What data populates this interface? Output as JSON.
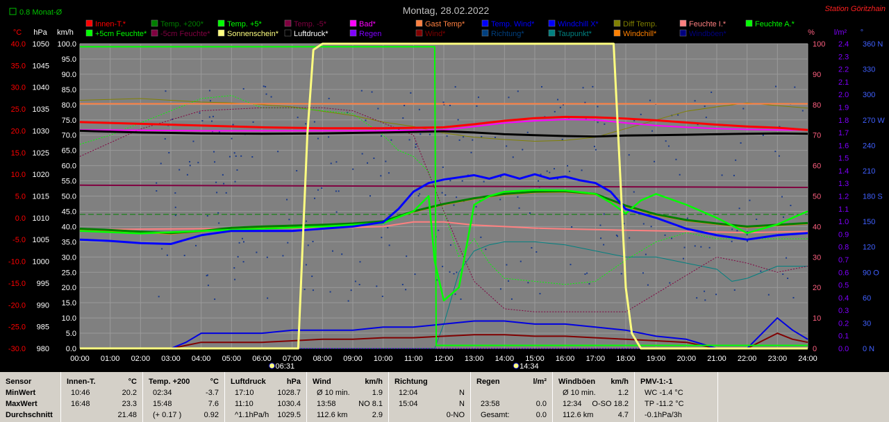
{
  "title": "Montag, 28.02.2022",
  "station": "Station Göritzhain",
  "monthly_avg_label": "0.8 Monat-Ø",
  "axis_units": {
    "c": "°C",
    "hpa": "hPa",
    "kmh": "km/h",
    "pct": "%",
    "lm2": "l/m²",
    "deg": "°"
  },
  "colors": {
    "background": "#000000",
    "plot_bg": "#808080",
    "grid": "#909090"
  },
  "legend": [
    {
      "label": "Innen-T.*",
      "color": "#ff0000"
    },
    {
      "label": "Temp. +200*",
      "color": "#007f00"
    },
    {
      "label": "Temp. +5*",
      "color": "#00ff00"
    },
    {
      "label": "Temp. -5*",
      "color": "#800040"
    },
    {
      "label": "Bad*",
      "color": "#ff00ff"
    },
    {
      "label": "Gast Temp*",
      "color": "#ff8040"
    },
    {
      "label": "Temp. Wind*",
      "color": "#0000ff"
    },
    {
      "label": "Windchill X*",
      "color": "#0000ff"
    },
    {
      "label": "Diff Temp.",
      "color": "#808000"
    },
    {
      "label": "Feuchte I.*",
      "color": "#ff8080"
    },
    {
      "label": "Feuchte A.*",
      "color": "#00ff00"
    },
    {
      "label": "+5cm Feuchte*",
      "color": "#00ff00"
    },
    {
      "label": "-5cm Feuchte*",
      "color": "#800040"
    },
    {
      "label": "Sonnenschein*",
      "color": "#ffff80"
    },
    {
      "label": "Luftdruck*",
      "color": "#000000"
    },
    {
      "label": "Regen",
      "color": "#8000ff"
    },
    {
      "label": "Wind*",
      "color": "#800000"
    },
    {
      "label": "Richtung*",
      "color": "#004080"
    },
    {
      "label": "Taupunkt*",
      "color": "#008080"
    },
    {
      "label": "Windchill*",
      "color": "#ff8000"
    },
    {
      "label": "Windböen*",
      "color": "#000080"
    }
  ],
  "chart_data": {
    "type": "line",
    "title": "Montag, 28.02.2022",
    "x_ticks": [
      "00:00",
      "01:00",
      "02:00",
      "03:00",
      "04:00",
      "05:00",
      "06:00",
      "07:00",
      "08:00",
      "09:00",
      "10:00",
      "11:00",
      "12:00",
      "13:00",
      "14:00",
      "15:00",
      "16:00",
      "17:00",
      "18:00",
      "19:00",
      "20:00",
      "21:00",
      "22:00",
      "23:00",
      "24:00"
    ],
    "xlim": [
      0,
      24
    ],
    "axes": {
      "temp_c": {
        "ticks": [
          "40.0",
          "35.0",
          "30.0",
          "25.0",
          "20.0",
          "15.0",
          "10.0",
          "5.0",
          "0.0",
          "-5.0",
          "-10.0",
          "-15.0",
          "-20.0",
          "-25.0",
          "-30.0"
        ],
        "lim": [
          -30,
          40
        ],
        "color": "#ff0000"
      },
      "pressure_hpa": {
        "ticks": [
          "1050",
          "1045",
          "1040",
          "1035",
          "1030",
          "1025",
          "1020",
          "1015",
          "1010",
          "1005",
          "1000",
          "995",
          "990",
          "985",
          "980"
        ],
        "lim": [
          980,
          1050
        ],
        "color": "#ffffff"
      },
      "speed_kmh": {
        "ticks": [
          "100.0",
          "95.0",
          "90.0",
          "85.0",
          "80.0",
          "75.0",
          "70.0",
          "65.0",
          "60.0",
          "55.0",
          "50.0",
          "45.0",
          "40.0",
          "35.0",
          "30.0",
          "25.0",
          "20.0",
          "15.0",
          "10.0",
          "5.0",
          "0.0"
        ],
        "lim": [
          0,
          100
        ],
        "color": "#ffffff"
      },
      "humidity_pct": {
        "ticks": [
          "100",
          "90",
          "80",
          "70",
          "60",
          "50",
          "40",
          "30",
          "20",
          "10",
          "0"
        ],
        "lim": [
          0,
          100
        ],
        "color": "#ff8080"
      },
      "rain_lm2": {
        "ticks": [
          "2.4",
          "2.3",
          "2.2",
          "2.1",
          "2.0",
          "1.9",
          "1.8",
          "1.7",
          "1.6",
          "1.5",
          "1.4",
          "1.3",
          "1.2",
          "1.1",
          "1.0",
          "0.9",
          "0.8",
          "0.7",
          "0.6",
          "0.5",
          "0.4",
          "0.3",
          "0.2",
          "0.1",
          "0.0"
        ],
        "lim": [
          0,
          2.5
        ],
        "color": "#8000ff"
      },
      "direction_deg": {
        "ticks": [
          "360 N",
          "330",
          "300",
          "270 W",
          "240",
          "210",
          "180 S",
          "150",
          "120",
          "90 O",
          "60",
          "30",
          "0 N"
        ],
        "lim": [
          0,
          360
        ],
        "color": "#4060ff"
      }
    },
    "sunrise": "06:31",
    "sunset": "14:34",
    "series": [
      {
        "name": "Innen-T.*",
        "axis": "temp_c",
        "x": [
          0,
          2,
          4,
          6,
          8,
          10,
          12,
          13,
          14,
          15,
          16,
          17,
          18,
          19,
          20,
          21,
          22,
          23,
          24
        ],
        "values": [
          22,
          21.6,
          21.2,
          20.8,
          20.6,
          20.6,
          20.8,
          21.5,
          22.3,
          22.9,
          23.2,
          23.1,
          22.8,
          22.4,
          21.9,
          21.4,
          21,
          20.7,
          20.2
        ]
      },
      {
        "name": "Bad*",
        "axis": "temp_c",
        "x": [
          0,
          2,
          4,
          6,
          8,
          10,
          12,
          13,
          14,
          15,
          16,
          17,
          18,
          19,
          20,
          21,
          22,
          23,
          24
        ],
        "values": [
          20.2,
          20.1,
          20,
          20,
          20,
          20,
          20.2,
          21,
          21.8,
          22.3,
          22.6,
          22.5,
          21.8,
          21.2,
          20.8,
          20.5,
          20.3,
          20.2,
          20.2
        ]
      },
      {
        "name": "Gast Temp*",
        "axis": "temp_c",
        "x": [
          0,
          24
        ],
        "values": [
          26.2,
          26.2
        ]
      },
      {
        "name": "Temp. -5*",
        "axis": "temp_c",
        "x": [
          0,
          24
        ],
        "values": [
          7.5,
          7
        ]
      },
      {
        "name": "Luftdruck*",
        "axis": "pressure_hpa",
        "x": [
          0,
          2,
          4,
          6,
          8,
          10,
          12,
          13,
          14,
          15,
          16,
          17,
          18,
          19,
          20,
          21,
          22,
          23,
          24
        ],
        "values": [
          1030,
          1029.6,
          1029.4,
          1029.3,
          1029.4,
          1029.6,
          1029.9,
          1029.6,
          1029.2,
          1029,
          1028.8,
          1028.7,
          1028.9,
          1029,
          1029.1,
          1029.2,
          1029.3,
          1029.4,
          1029.3
        ]
      },
      {
        "name": "Temp. +200*",
        "axis": "temp_c",
        "x": [
          0,
          1,
          2,
          3,
          4,
          5,
          6,
          7,
          8,
          9,
          10,
          11,
          12,
          13,
          14,
          15,
          16,
          17,
          18,
          19,
          20,
          21,
          22,
          23,
          24
        ],
        "values": [
          -2.5,
          -2.8,
          -3.2,
          -3.5,
          -3,
          -2.3,
          -2,
          -1.8,
          -1.6,
          -1.3,
          -0.8,
          1.5,
          3.2,
          4.5,
          5.5,
          6,
          6.1,
          5.5,
          2.8,
          0.8,
          -0.5,
          -1.3,
          -2,
          -1.6,
          -1.2
        ]
      },
      {
        "name": "Temp. +5*",
        "axis": "temp_c",
        "x": [
          0,
          2,
          4,
          6,
          8,
          10,
          11,
          11.5,
          11.7,
          12,
          12.5,
          13,
          13.5,
          14,
          15,
          16,
          17,
          17.5,
          18,
          18.5,
          19,
          20,
          21,
          22,
          23,
          24
        ],
        "values": [
          -3,
          -3.6,
          -3,
          -2.5,
          -2,
          -1.2,
          1.5,
          5,
          -10,
          -19,
          -16,
          3,
          5,
          6,
          6.4,
          6.3,
          5.5,
          3.5,
          1,
          4,
          5.5,
          3,
          0,
          -3.5,
          -1.5,
          1.5
        ]
      },
      {
        "name": "Temp. Wind*",
        "axis": "temp_c",
        "x": [
          0,
          1,
          2,
          3,
          4,
          5,
          6,
          7,
          8,
          9,
          10,
          10.5,
          11,
          11.5,
          12,
          13,
          13.5,
          14,
          14.5,
          15,
          15.5,
          16,
          16.5,
          17,
          17.5,
          18,
          19,
          20,
          21,
          22,
          23,
          24
        ],
        "values": [
          -5,
          -5.3,
          -5.8,
          -6,
          -4,
          -3,
          -3,
          -3,
          -2.5,
          -2,
          -1,
          2,
          6,
          8,
          8.8,
          9.8,
          9,
          10,
          9,
          10,
          9,
          9.5,
          8.6,
          8,
          6,
          2,
          0,
          -2.5,
          -4,
          -5,
          -4,
          -3.5
        ]
      },
      {
        "name": "Sonnenschein*",
        "axis": "speed_kmh",
        "x": [
          0,
          7.2,
          7.5,
          7.7,
          8,
          9,
          10,
          11,
          12,
          13,
          14,
          15,
          16,
          17,
          17.6,
          17.8,
          18,
          18.2,
          18.5,
          24
        ],
        "values": [
          0,
          0,
          70,
          98,
          100,
          100,
          100,
          100,
          100,
          100,
          100,
          100,
          100,
          100,
          100,
          60,
          20,
          5,
          0,
          0
        ]
      },
      {
        "name": "Feuchte A.*",
        "axis": "humidity_pct",
        "x": [
          0,
          11.7,
          11.75,
          24
        ],
        "values": [
          99,
          99,
          1,
          1
        ]
      },
      {
        "name": "Feuchte I.*",
        "axis": "humidity_pct",
        "x": [
          0,
          4,
          8,
          10,
          11,
          12,
          13,
          14,
          15,
          16,
          17,
          18,
          19,
          20,
          21,
          22,
          23,
          24
        ],
        "values": [
          39,
          39.3,
          39.5,
          40,
          41.5,
          41.5,
          40.5,
          40,
          39.5,
          39.2,
          39,
          38.8,
          38.6,
          38.4,
          38.2,
          38,
          38.2,
          38.4
        ]
      },
      {
        "name": "Diff Temp.",
        "axis": "temp_c",
        "x": [
          0,
          1,
          2,
          3,
          4,
          5,
          6,
          7,
          8,
          9,
          10,
          11,
          12,
          13,
          14,
          15,
          16,
          17,
          18,
          19,
          20,
          21,
          22,
          23,
          24
        ],
        "values": [
          27,
          27.2,
          27.4,
          27,
          26.6,
          26.4,
          26,
          25.5,
          24.5,
          23.5,
          22,
          21,
          19.5,
          18.5,
          18,
          17.6,
          17.8,
          18.5,
          20.5,
          22.5,
          24.5,
          25.5,
          26.4,
          25.8,
          25.2
        ]
      },
      {
        "name": "+5cm Feuchte*",
        "axis": "humidity_pct",
        "x": [
          0,
          1,
          2,
          3,
          4,
          5,
          6,
          7,
          8,
          9,
          10,
          10.5,
          11,
          11.5,
          12,
          12.5,
          13,
          13.5,
          14,
          15,
          16,
          17,
          18,
          19,
          20,
          21,
          22,
          23,
          24
        ],
        "values": [
          67,
          70,
          74,
          78,
          82,
          83,
          79,
          79,
          78,
          77,
          70,
          65,
          63,
          58,
          45,
          30,
          36,
          28,
          23,
          22,
          21,
          22,
          29,
          35,
          38,
          36,
          36,
          36,
          36
        ]
      },
      {
        "name": "-5cm Feuchte*",
        "axis": "humidity_pct",
        "x": [
          0,
          2,
          4,
          6,
          8,
          9,
          10,
          11,
          12,
          13,
          14,
          15,
          16,
          17,
          18,
          19,
          20,
          21,
          22,
          23,
          24
        ],
        "values": [
          63,
          72,
          78,
          79,
          79,
          78,
          74,
          70,
          45,
          22,
          13,
          12,
          12,
          12,
          12,
          18,
          24,
          30,
          28,
          25,
          27
        ]
      },
      {
        "name": "Taupunkt*",
        "axis": "humidity_pct",
        "x": [
          0,
          11.7,
          12,
          12.5,
          13,
          13.5,
          14,
          15,
          16,
          17,
          18,
          19,
          20,
          21,
          21.5,
          22,
          23,
          24
        ],
        "values": [
          0,
          0,
          8,
          25,
          32,
          34,
          35,
          35,
          34,
          32,
          30,
          30,
          28,
          26,
          22,
          23,
          27,
          27
        ]
      },
      {
        "name": "Windchill*",
        "axis": "temp_c",
        "x": [
          0,
          1,
          2,
          3,
          4,
          5,
          6,
          7,
          8,
          9,
          10,
          11,
          12,
          13,
          14,
          15,
          16,
          17,
          18,
          19,
          20,
          21,
          22,
          23,
          24
        ],
        "values": [
          -2.7,
          -3,
          -3.4,
          -3.7,
          -3.2,
          -2.5,
          -2.2,
          -2,
          -1.8,
          -1.5,
          -1,
          1.3,
          3,
          4.3,
          5.3,
          5.8,
          5.9,
          5.3,
          2.6,
          0.6,
          -0.7,
          -1.5,
          -2.2,
          -1.8,
          -1.4
        ]
      },
      {
        "name": "Wind*",
        "axis": "speed_kmh",
        "x": [
          0,
          3,
          3.5,
          4,
          5,
          6,
          7,
          8,
          9,
          10,
          11,
          12,
          13,
          14,
          15,
          16,
          17,
          18,
          19,
          20,
          21,
          22,
          23,
          23.5,
          24
        ],
        "values": [
          0,
          0,
          1,
          2,
          2,
          2,
          2.5,
          3,
          3,
          3.5,
          3.5,
          4,
          4.5,
          4.5,
          4,
          4,
          3.5,
          3,
          2.5,
          2,
          0,
          0,
          5,
          3,
          2
        ]
      },
      {
        "name": "Windböen*",
        "axis": "speed_kmh",
        "x": [
          0,
          3,
          3.5,
          4,
          5,
          6,
          7,
          8,
          9,
          10,
          11,
          12,
          13,
          14,
          15,
          16,
          17,
          18,
          19,
          20,
          21,
          22,
          23,
          23.5,
          24
        ],
        "values": [
          0,
          0,
          2,
          5,
          5,
          5,
          6,
          6,
          6,
          7,
          7,
          8,
          9,
          9,
          8,
          8,
          7,
          6,
          4,
          3,
          0,
          0,
          10,
          6,
          3
        ]
      },
      {
        "name": "Regen",
        "axis": "rain_lm2",
        "x": [
          0,
          24
        ],
        "values": [
          0,
          0
        ]
      }
    ],
    "monthly_avg_line": {
      "axis": "temp_c",
      "value": 0.8
    }
  },
  "stats": [
    {
      "title": "Sensor",
      "unit": "",
      "rows": [
        [
          "MinWert",
          ""
        ],
        [
          "MaxWert",
          ""
        ],
        [
          "Durchschnitt",
          ""
        ]
      ]
    },
    {
      "title": "Innen-T.",
      "unit": "°C",
      "rows": [
        [
          "10:46",
          "20.2"
        ],
        [
          "16:48",
          "23.3"
        ],
        [
          "",
          "21.48"
        ]
      ]
    },
    {
      "title": "Temp. +200",
      "unit": "°C",
      "rows": [
        [
          "02:34",
          "-3.7"
        ],
        [
          "15:48",
          "7.6"
        ],
        [
          "(+ 0.17 )",
          "0.92"
        ]
      ]
    },
    {
      "title": "Luftdruck",
      "unit": "hPa",
      "rows": [
        [
          "17:10",
          "1028.7"
        ],
        [
          "11:10",
          "1030.4"
        ],
        [
          "^1.1hPa/h",
          "1029.5"
        ]
      ]
    },
    {
      "title": "Wind",
      "unit": "km/h",
      "rows": [
        [
          "Ø 10 min.",
          "1.9"
        ],
        [
          "13:58",
          "NO 8.1"
        ],
        [
          "112.6 km",
          "2.9"
        ]
      ]
    },
    {
      "title": "Richtung",
      "unit": "",
      "rows": [
        [
          "12:04",
          "N"
        ],
        [
          "15:04",
          "N"
        ],
        [
          "",
          "0-NO"
        ]
      ]
    },
    {
      "title": "Regen",
      "unit": "l/m²",
      "rows": [
        [
          "",
          ""
        ],
        [
          "23:58",
          "0.0"
        ],
        [
          "Gesamt:",
          "0.0"
        ]
      ]
    },
    {
      "title": "Windböen",
      "unit": "km/h",
      "rows": [
        [
          "Ø 10 min.",
          "1.2"
        ],
        [
          "12:34",
          "O-SO 18.2"
        ],
        [
          "112.6 km",
          "4.7"
        ]
      ]
    },
    {
      "title": "PMV-1:-1",
      "unit": "",
      "rows": [
        [
          "WC -1.4 °C",
          ""
        ],
        [
          "TP -11.2 °C",
          ""
        ],
        [
          "-0.1hPa/3h",
          ""
        ]
      ]
    }
  ]
}
